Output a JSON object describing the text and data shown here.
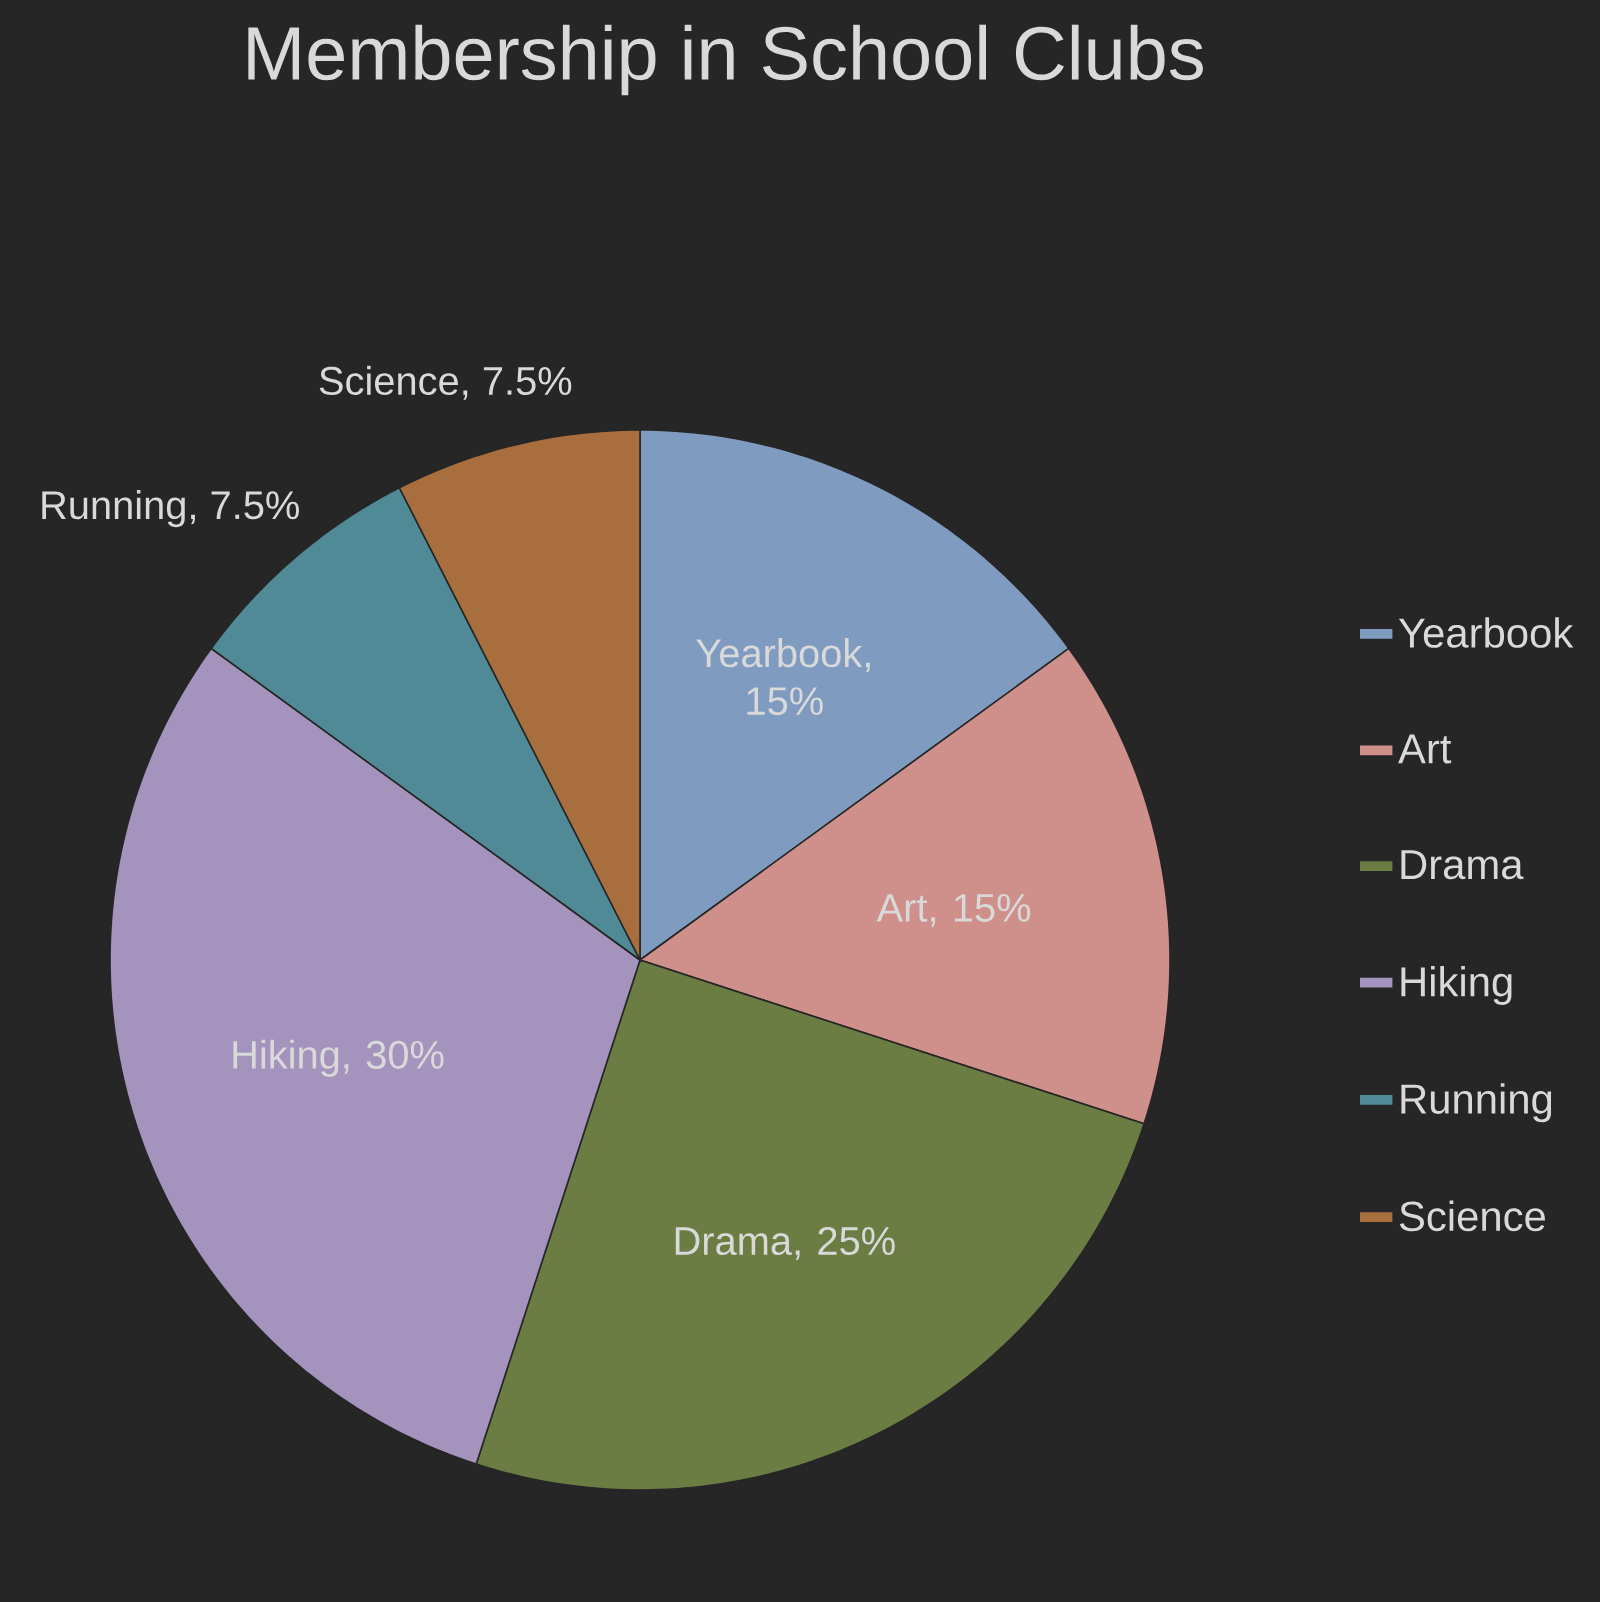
{
  "chart_data": {
    "type": "pie",
    "title": "Membership in School Clubs",
    "categories": [
      "Yearbook",
      "Art",
      "Drama",
      "Hiking",
      "Running",
      "Science"
    ],
    "values": [
      15,
      15,
      25,
      30,
      7.5,
      7.5
    ],
    "colors": [
      "#7f9bc0",
      "#cf8f8a",
      "#6b7d42",
      "#a393bd",
      "#4f8a96",
      "#a86e3e"
    ],
    "value_labels": [
      "Yearbook, 15%",
      "Art, 15%",
      "Drama, 25%",
      "Hiking, 30%",
      "Running, 7.5%",
      "Science, 7.5%"
    ],
    "legend": "right"
  }
}
